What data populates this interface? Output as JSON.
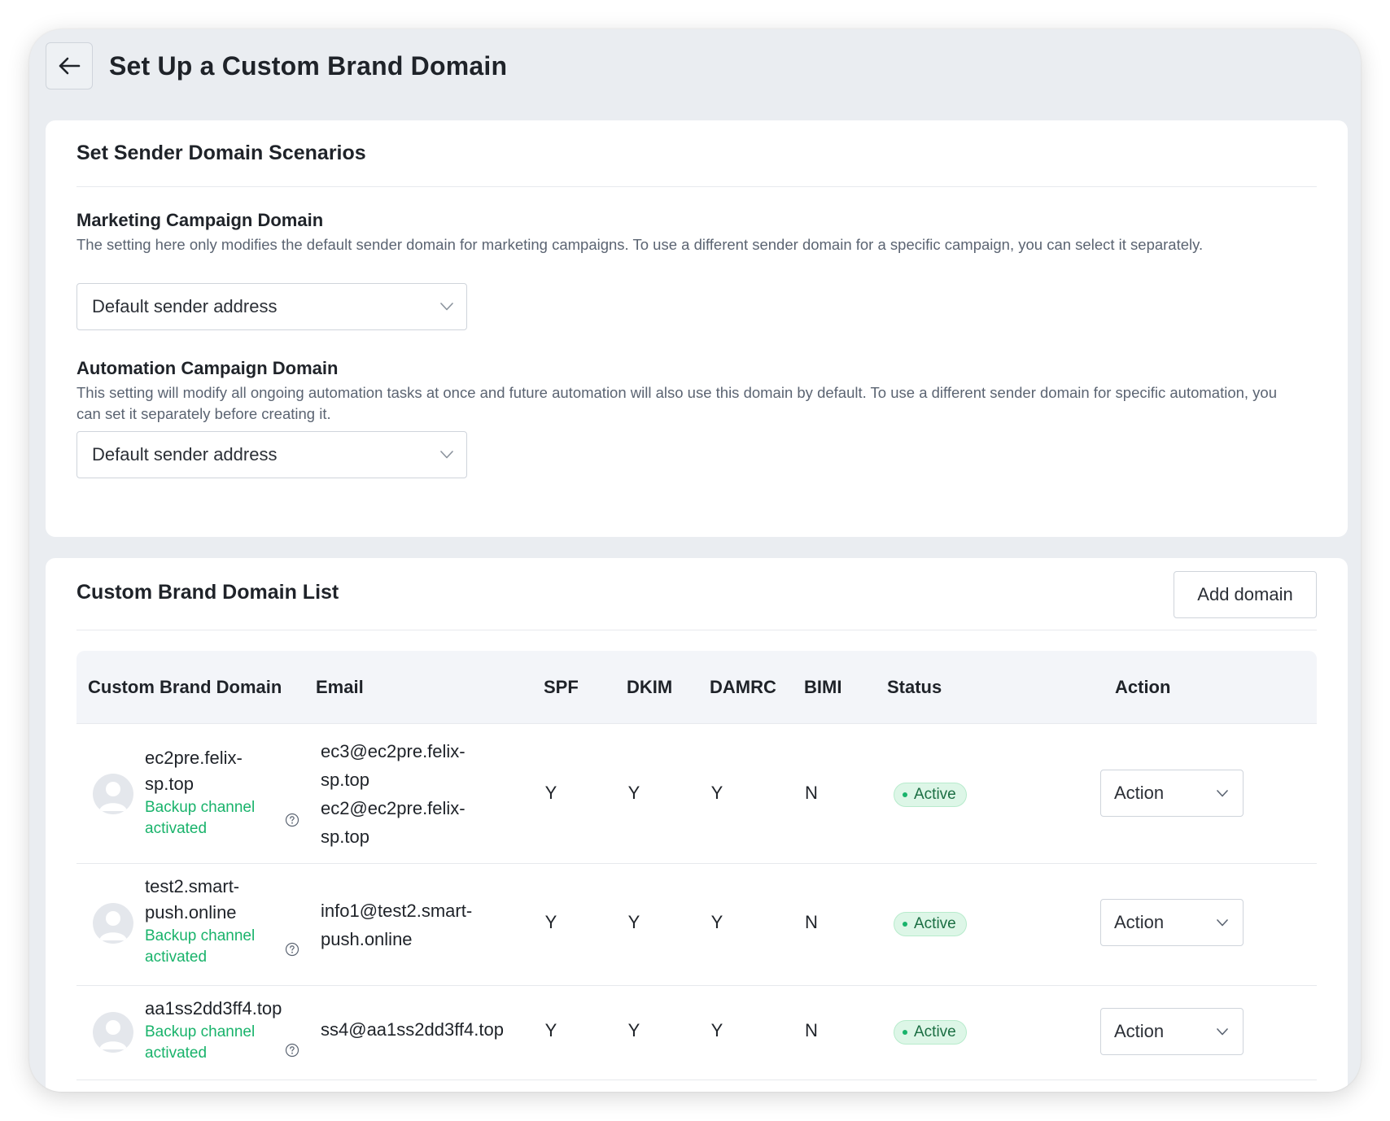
{
  "header": {
    "back_icon": "arrow-left-icon",
    "title": "Set Up a Custom Brand Domain"
  },
  "scenarios": {
    "title": "Set Sender Domain Scenarios",
    "marketing": {
      "label": "Marketing Campaign Domain",
      "description": "The setting here only modifies the default sender domain for marketing campaigns. To use a different sender domain for a specific campaign, you can select it separately.",
      "selected": "Default sender address"
    },
    "automation": {
      "label": "Automation Campaign Domain",
      "description": "This setting will modify all ongoing automation tasks at once and future automation will also use this domain by default. To use a different sender domain for specific automation, you can set it separately before creating it.",
      "selected": "Default sender address"
    }
  },
  "domain_list": {
    "title": "Custom Brand Domain List",
    "add_button": "Add domain",
    "columns": [
      "Custom Brand Domain",
      "Email",
      "SPF",
      "DKIM",
      "DAMRC",
      "BIMI",
      "Status",
      "Action"
    ],
    "rows": [
      {
        "domain_lines": [
          "ec2pre.felix-",
          "sp.top"
        ],
        "backup_lines": [
          "Backup channel",
          "activated"
        ],
        "email_lines": [
          "ec3@ec2pre.felix-",
          "sp.top",
          "ec2@ec2pre.felix-",
          "sp.top"
        ],
        "spf": "Y",
        "dkim": "Y",
        "damrc": "Y",
        "bimi": "N",
        "status": "Active",
        "action": "Action"
      },
      {
        "domain_lines": [
          "test2.smart-",
          "push.online"
        ],
        "backup_lines": [
          "Backup channel",
          "activated"
        ],
        "email_lines": [
          "info1@test2.smart-",
          "push.online"
        ],
        "spf": "Y",
        "dkim": "Y",
        "damrc": "Y",
        "bimi": "N",
        "status": "Active",
        "action": "Action"
      },
      {
        "domain_lines": [
          "aa1ss2dd3ff4.top"
        ],
        "backup_lines": [
          "Backup channel",
          "activated"
        ],
        "email_lines": [
          "ss4@aa1ss2dd3ff4.top"
        ],
        "spf": "Y",
        "dkim": "Y",
        "damrc": "Y",
        "bimi": "N",
        "status": "Active",
        "action": "Action"
      }
    ]
  },
  "colors": {
    "page_bg": "#eaedf1",
    "card_bg": "#ffffff",
    "accent_green": "#19b36b",
    "badge_bg": "#ddf6e7",
    "table_header_bg": "#f3f5f9"
  },
  "icons": {
    "back": "arrow-left-icon",
    "dropdown": "chevron-down-icon",
    "avatar": "user-avatar-icon",
    "help": "question-circle-icon",
    "status_dot": "status-dot-icon"
  }
}
